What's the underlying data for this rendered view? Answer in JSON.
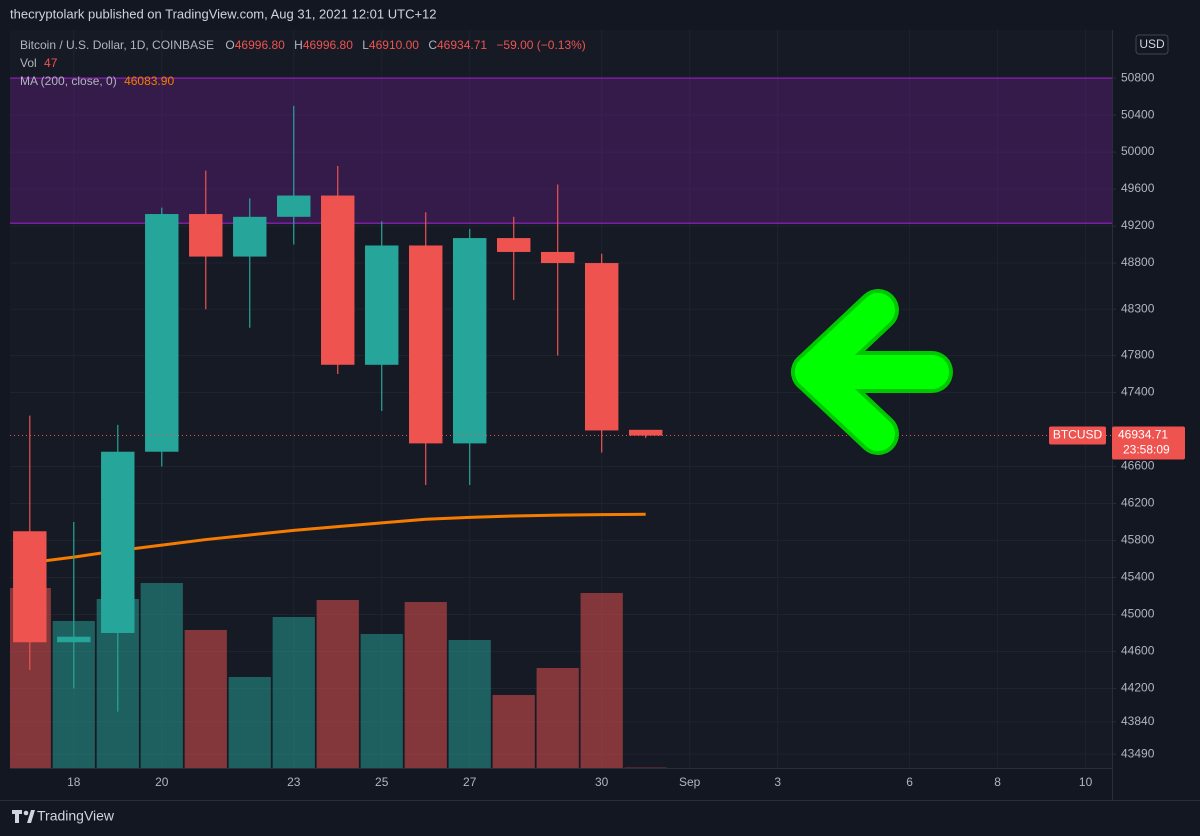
{
  "header": {
    "byline": "thecryptolark published on TradingView.com, Aug 31, 2021 12:01 UTC+12"
  },
  "footer": {
    "brand": "TradingView"
  },
  "chart_data": {
    "type": "candlestick",
    "title": "Bitcoin / U.S. Dollar, 1D, COINBASE",
    "x": [
      17,
      18,
      19,
      20,
      21,
      22,
      23,
      24,
      25,
      26,
      27,
      28,
      29,
      30,
      31
    ],
    "open": [
      45900,
      44700,
      44800,
      46760,
      49330,
      48870,
      49300,
      49530,
      47700,
      48990,
      46850,
      49070,
      48920,
      48800,
      46996.8
    ],
    "high": [
      47150,
      46000,
      47050,
      49400,
      49800,
      49500,
      50500,
      49850,
      49250,
      49350,
      49170,
      49300,
      49650,
      48900,
      46996.8
    ],
    "low": [
      44400,
      44200,
      43950,
      46600,
      48300,
      48100,
      49000,
      47600,
      47200,
      46400,
      46400,
      48400,
      47800,
      46750,
      46910
    ],
    "close": [
      44700,
      44760,
      46760,
      49330,
      48870,
      49300,
      49530,
      47700,
      48990,
      46850,
      49070,
      48920,
      48800,
      46990,
      46934.71
    ],
    "colors": {
      "up": "#26a69a",
      "down": "#ef5350"
    },
    "xlim": [
      16.55,
      41.6
    ],
    "xticks": [
      18,
      20,
      23,
      25,
      27,
      30,
      {
        "value": 32,
        "label": "Sep"
      },
      {
        "value": 34,
        "label": "3"
      },
      {
        "value": 37,
        "label": "6"
      },
      {
        "value": 39,
        "label": "8"
      },
      {
        "value": 41,
        "label": "10"
      }
    ],
    "ylim": [
      43340,
      51320
    ],
    "yticks": [
      50800,
      50400,
      50000,
      49600,
      49200,
      48800,
      48300,
      47800,
      47400,
      46600,
      46200,
      45800,
      45400,
      45000,
      44600,
      44200,
      43840,
      43490
    ],
    "grid": true,
    "currency": "USD",
    "legend": {
      "open_label": "O",
      "open_text": "46996.80",
      "high_label": "H",
      "high_text": "46996.80",
      "low_label": "L",
      "low_text": "46910.00",
      "close_label": "C",
      "close_text": "46934.71",
      "change_text": "−59.00 (−0.13%)"
    },
    "volume": {
      "name": "Vol",
      "values": [
        18000,
        14700,
        16900,
        18500,
        13800,
        9100,
        15100,
        16800,
        13400,
        16600,
        12800,
        7300,
        10000,
        17500,
        47
      ],
      "ylim": [
        0,
        73800
      ]
    },
    "ma": {
      "name": "MA (200, close, 0)",
      "color": "#f57c00",
      "values": [
        45560,
        45620,
        45690,
        45750,
        45810,
        45860,
        45910,
        45950,
        45990,
        46030,
        46050,
        46065,
        46075,
        46080,
        46083.9
      ],
      "last_text": "46083.90"
    },
    "zone": {
      "range": [
        49230,
        50800
      ],
      "color": "#7b1fa2"
    },
    "price_badge": {
      "symbol": "BTCUSD",
      "price_text": "46934.71",
      "countdown": "23:58:09"
    }
  }
}
